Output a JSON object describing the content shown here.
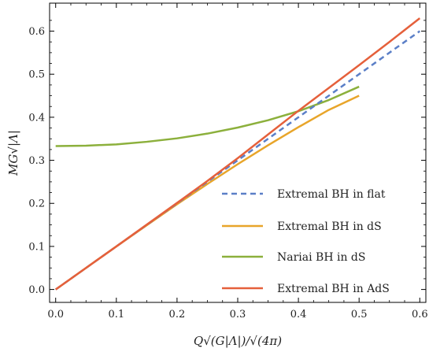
{
  "chart_data": {
    "type": "line",
    "title": "",
    "xlabel": "Q√(G|Λ|)/√(4π)",
    "ylabel": "MG√|Λ|",
    "xlim": [
      -0.01,
      0.61
    ],
    "ylim": [
      -0.03,
      0.665
    ],
    "xticks": [
      0.0,
      0.1,
      0.2,
      0.3,
      0.4,
      0.5,
      0.6
    ],
    "yticks": [
      0.0,
      0.1,
      0.2,
      0.3,
      0.4,
      0.5,
      0.6
    ],
    "xtick_labels": [
      "0.0",
      "0.1",
      "0.2",
      "0.3",
      "0.4",
      "0.5",
      "0.6"
    ],
    "ytick_labels": [
      "0.0",
      "0.1",
      "0.2",
      "0.3",
      "0.4",
      "0.5",
      "0.6"
    ],
    "grid": false,
    "legend_position": "bottom-right",
    "series": [
      {
        "name": "Extremal BH in flat",
        "color": "#5b7fc7",
        "dash": true,
        "x": [
          0.0,
          0.6
        ],
        "y": [
          0.0,
          0.6
        ]
      },
      {
        "name": "Extremal BH in dS",
        "color": "#e8a52a",
        "dash": false,
        "x": [
          0.0,
          0.05,
          0.1,
          0.15,
          0.2,
          0.25,
          0.3,
          0.35,
          0.4,
          0.45,
          0.5
        ],
        "y": [
          0.0,
          0.05,
          0.1,
          0.149,
          0.198,
          0.245,
          0.291,
          0.335,
          0.377,
          0.417,
          0.45
        ]
      },
      {
        "name": "Nariai BH in dS",
        "color": "#8cb03c",
        "dash": false,
        "x": [
          0.0,
          0.05,
          0.1,
          0.15,
          0.2,
          0.25,
          0.3,
          0.35,
          0.4,
          0.45,
          0.5
        ],
        "y": [
          0.333,
          0.334,
          0.337,
          0.343,
          0.351,
          0.362,
          0.376,
          0.393,
          0.414,
          0.44,
          0.471
        ]
      },
      {
        "name": "Extremal BH in AdS",
        "color": "#e5603b",
        "dash": false,
        "x": [
          0.0,
          0.1,
          0.2,
          0.25,
          0.3,
          0.35,
          0.4,
          0.45,
          0.5,
          0.55,
          0.6
        ],
        "y": [
          0.0,
          0.1,
          0.201,
          0.252,
          0.305,
          0.36,
          0.415,
          0.468,
          0.521,
          0.575,
          0.63
        ]
      }
    ]
  }
}
